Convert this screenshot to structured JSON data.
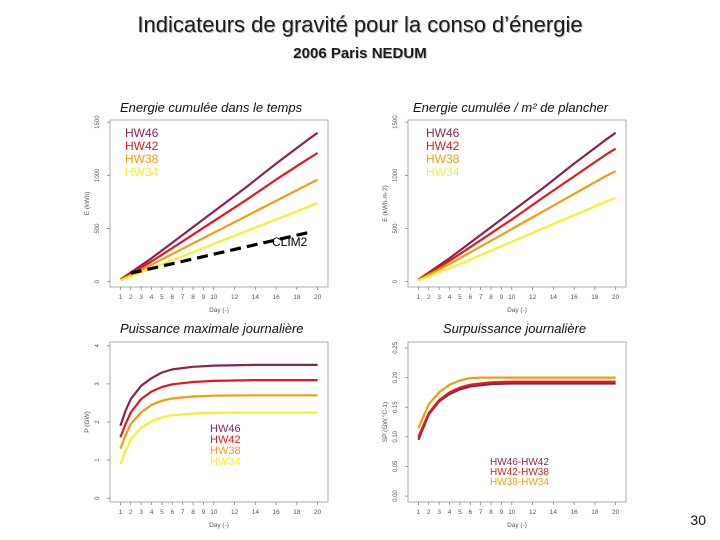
{
  "slide": {
    "title": "Indicateurs de gravité pour la conso d’énergie",
    "subtitle": "2006 Paris NEDUM",
    "page_number": "30"
  },
  "colors": {
    "HW46": "#8B2252",
    "HW42": "#E31A1C",
    "HW38": "#F39C12",
    "HW34": "#F7F02A",
    "CLIM2": "#000000"
  },
  "chart_data": [
    {
      "id": "cum",
      "type": "line",
      "title": "Energie cumulée dans le temps",
      "xlabel": "Day (-)",
      "ylabel": "E (kWh)",
      "xticks": [
        1,
        2,
        3,
        4,
        5,
        6,
        7,
        8,
        9,
        10,
        12,
        14,
        16,
        18,
        20
      ],
      "xlim": [
        0,
        21
      ],
      "yticks": [
        0,
        500,
        1000,
        1500
      ],
      "ylim": [
        -50,
        1520
      ],
      "legend": [
        "HW46",
        "HW42",
        "HW38",
        "HW34"
      ],
      "series": [
        {
          "name": "HW46",
          "x": [
            1,
            4,
            7,
            10,
            13,
            16,
            19,
            20
          ],
          "y": [
            20,
            220,
            440,
            660,
            880,
            1110,
            1330,
            1400
          ]
        },
        {
          "name": "HW42",
          "x": [
            1,
            4,
            7,
            10,
            13,
            16,
            19,
            20
          ],
          "y": [
            18,
            190,
            380,
            570,
            760,
            960,
            1150,
            1210
          ]
        },
        {
          "name": "HW38",
          "x": [
            1,
            4,
            7,
            10,
            13,
            16,
            19,
            20
          ],
          "y": [
            15,
            160,
            310,
            460,
            610,
            760,
            910,
            960
          ]
        },
        {
          "name": "HW34",
          "x": [
            1,
            4,
            7,
            10,
            13,
            16,
            19,
            20
          ],
          "y": [
            12,
            125,
            240,
            355,
            470,
            585,
            700,
            740
          ]
        },
        {
          "name": "CLIM2",
          "x": [
            2,
            19
          ],
          "y": [
            80,
            460
          ],
          "dashed": true
        }
      ],
      "annotation": "CLIM2"
    },
    {
      "id": "cum_m2",
      "type": "line",
      "title": "Energie cumulée / m² de plancher",
      "xlabel": "Day (-)",
      "ylabel": "E (kWh.m-2)",
      "xticks": [
        1,
        2,
        3,
        4,
        5,
        6,
        7,
        8,
        9,
        10,
        12,
        14,
        16,
        18,
        20
      ],
      "xlim": [
        0,
        21
      ],
      "yticks": [
        0,
        500,
        1000,
        1500
      ],
      "ylim": [
        -50,
        1520
      ],
      "legend": [
        "HW46",
        "HW42",
        "HW38",
        "HW34"
      ],
      "series": [
        {
          "name": "HW46",
          "x": [
            1,
            4,
            7,
            10,
            13,
            16,
            19,
            20
          ],
          "y": [
            20,
            220,
            440,
            660,
            880,
            1110,
            1330,
            1400
          ]
        },
        {
          "name": "HW42",
          "x": [
            1,
            4,
            7,
            10,
            13,
            16,
            19,
            20
          ],
          "y": [
            18,
            195,
            390,
            585,
            790,
            990,
            1190,
            1250
          ]
        },
        {
          "name": "HW38",
          "x": [
            1,
            4,
            7,
            10,
            13,
            16,
            19,
            20
          ],
          "y": [
            15,
            165,
            330,
            495,
            660,
            825,
            990,
            1040
          ]
        },
        {
          "name": "HW34",
          "x": [
            1,
            4,
            7,
            10,
            13,
            16,
            19,
            20
          ],
          "y": [
            12,
            125,
            250,
            375,
            500,
            625,
            750,
            790
          ]
        }
      ]
    },
    {
      "id": "pmax",
      "type": "line",
      "title": "Puissance maximale journalière",
      "xlabel": "Day (-)",
      "ylabel": "P (GW)",
      "xticks": [
        1,
        2,
        3,
        4,
        5,
        6,
        7,
        8,
        9,
        10,
        12,
        14,
        16,
        18,
        20
      ],
      "xlim": [
        0,
        21
      ],
      "yticks": [
        0,
        1,
        2,
        3,
        4
      ],
      "ylim": [
        -0.1,
        4.1
      ],
      "legend": [
        "HW46",
        "HW42",
        "HW38",
        "HW34"
      ],
      "series": [
        {
          "name": "HW46",
          "x": [
            1,
            1.5,
            2,
            3,
            4,
            5,
            6,
            8,
            10,
            14,
            20
          ],
          "y": [
            1.9,
            2.3,
            2.6,
            2.95,
            3.15,
            3.3,
            3.38,
            3.45,
            3.48,
            3.5,
            3.5
          ]
        },
        {
          "name": "HW42",
          "x": [
            1,
            1.5,
            2,
            3,
            4,
            5,
            6,
            8,
            10,
            14,
            20
          ],
          "y": [
            1.6,
            1.95,
            2.25,
            2.6,
            2.8,
            2.92,
            2.99,
            3.05,
            3.08,
            3.1,
            3.1
          ]
        },
        {
          "name": "HW38",
          "x": [
            1,
            1.5,
            2,
            3,
            4,
            5,
            6,
            8,
            10,
            14,
            20
          ],
          "y": [
            1.3,
            1.65,
            1.95,
            2.25,
            2.45,
            2.56,
            2.62,
            2.67,
            2.69,
            2.7,
            2.7
          ]
        },
        {
          "name": "HW34",
          "x": [
            1,
            1.5,
            2,
            3,
            4,
            5,
            6,
            8,
            10,
            14,
            20
          ],
          "y": [
            0.9,
            1.25,
            1.55,
            1.85,
            2.02,
            2.12,
            2.18,
            2.22,
            2.24,
            2.25,
            2.25
          ]
        }
      ]
    },
    {
      "id": "surp",
      "type": "line",
      "title": "Surpuissance journalière",
      "xlabel": "Day (-)",
      "ylabel": "SP (GW.°C-1)",
      "xticks": [
        1,
        2,
        3,
        4,
        5,
        6,
        7,
        8,
        9,
        10,
        12,
        14,
        16,
        18,
        20
      ],
      "xlim": [
        0,
        21
      ],
      "yticks": [
        0.0,
        0.05,
        0.1,
        0.15,
        0.2,
        0.25
      ],
      "yticklabels": [
        "0.00",
        "0.05",
        "0.10",
        "0.15",
        "0.20",
        "0.25"
      ],
      "ylim": [
        -0.01,
        0.26
      ],
      "legend": [
        "HW46-HW42",
        "HW42-HW38",
        "HW38-HW34"
      ],
      "series": [
        {
          "name": "HW46-HW42",
          "color": "HW46",
          "x": [
            1,
            2,
            3,
            4,
            5,
            6,
            7,
            8,
            10,
            14,
            20
          ],
          "y": [
            0.095,
            0.138,
            0.16,
            0.172,
            0.18,
            0.185,
            0.187,
            0.189,
            0.19,
            0.19,
            0.19
          ]
        },
        {
          "name": "HW42-HW38",
          "color": "HW42",
          "x": [
            1,
            2,
            3,
            4,
            5,
            6,
            7,
            8,
            10,
            14,
            20
          ],
          "y": [
            0.1,
            0.14,
            0.162,
            0.175,
            0.183,
            0.188,
            0.19,
            0.192,
            0.193,
            0.193,
            0.193
          ]
        },
        {
          "name": "HW38-HW34",
          "color": "HW38",
          "x": [
            1,
            2,
            3,
            4,
            5,
            6,
            7,
            8,
            10,
            14,
            20
          ],
          "y": [
            0.115,
            0.155,
            0.175,
            0.188,
            0.195,
            0.199,
            0.2,
            0.2,
            0.2,
            0.2,
            0.2
          ]
        }
      ]
    }
  ]
}
